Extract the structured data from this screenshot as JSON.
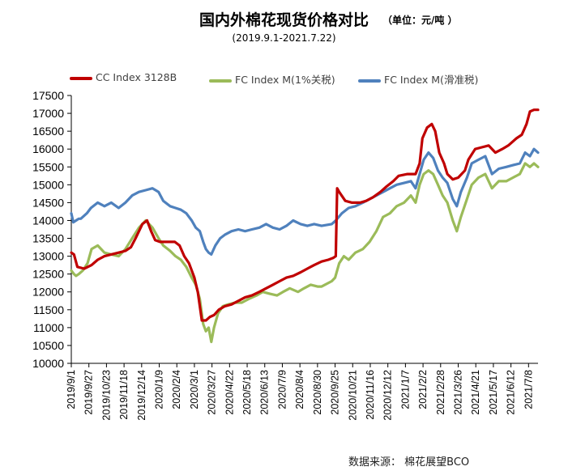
{
  "colors": {
    "cc": "#C00000",
    "fc1": "#9BBB59",
    "fc2": "#4F81BD"
  },
  "title": "国内外棉花现货价格对比",
  "unit": "（单位：元/吨 ）",
  "subtitle": "(2019.9.1-2021.7.22)",
  "source": "数据来源：  棉花展望BCO",
  "chart_data": {
    "type": "line",
    "title": "国内外棉花现货价格对比",
    "subtitle": "(2019.9.1-2021.7.22)",
    "ylabel": "",
    "xlabel": "",
    "ylim": [
      10000,
      17500
    ],
    "yticks": [
      10000,
      10500,
      11000,
      11500,
      12000,
      12500,
      13000,
      13500,
      14000,
      14500,
      15000,
      15500,
      16000,
      16500,
      17000,
      17500
    ],
    "xlim": [
      "2019/9/1",
      "2021/7/22"
    ],
    "xticks": [
      "2019/9/1",
      "2019/9/27",
      "2019/10/23",
      "2019/11/18",
      "2019/12/14",
      "2020/1/9",
      "2020/2/4",
      "2020/3/1",
      "2020/3/27",
      "2020/4/22",
      "2020/5/18",
      "2020/6/13",
      "2020/7/9",
      "2020/8/4",
      "2020/8/30",
      "2020/9/25",
      "2020/10/21",
      "2020/11/16",
      "2020/12/12",
      "2021/1/7",
      "2021/2/2",
      "2021/2/28",
      "2021/3/26",
      "2021/4/21",
      "2021/5/17",
      "2021/6/12",
      "2021/7/8"
    ],
    "grid": false,
    "legend": "top",
    "series": [
      {
        "name": "CC Index 3128B",
        "points": [
          [
            "2019/9/1",
            13100
          ],
          [
            "2019/9/5",
            13050
          ],
          [
            "2019/9/10",
            12700
          ],
          [
            "2019/9/20",
            12650
          ],
          [
            "2019/10/1",
            12750
          ],
          [
            "2019/10/10",
            12900
          ],
          [
            "2019/10/20",
            13000
          ],
          [
            "2019/10/30",
            13050
          ],
          [
            "2019/11/10",
            13100
          ],
          [
            "2019/11/20",
            13150
          ],
          [
            "2019/11/28",
            13250
          ],
          [
            "2019/12/5",
            13500
          ],
          [
            "2019/12/15",
            13900
          ],
          [
            "2019/12/22",
            14000
          ],
          [
            "2019/12/28",
            13700
          ],
          [
            "2020/1/3",
            13450
          ],
          [
            "2020/1/10",
            13400
          ],
          [
            "2020/1/20",
            13400
          ],
          [
            "2020/2/1",
            13400
          ],
          [
            "2020/2/8",
            13300
          ],
          [
            "2020/2/15",
            13000
          ],
          [
            "2020/2/22",
            12800
          ],
          [
            "2020/3/1",
            12400
          ],
          [
            "2020/3/6",
            12000
          ],
          [
            "2020/3/12",
            11200
          ],
          [
            "2020/3/18",
            11200
          ],
          [
            "2020/3/24",
            11300
          ],
          [
            "2020/3/30",
            11350
          ],
          [
            "2020/4/6",
            11500
          ],
          [
            "2020/4/15",
            11600
          ],
          [
            "2020/4/25",
            11650
          ],
          [
            "2020/5/5",
            11750
          ],
          [
            "2020/5/15",
            11850
          ],
          [
            "2020/5/25",
            11900
          ],
          [
            "2020/6/5",
            12000
          ],
          [
            "2020/6/15",
            12100
          ],
          [
            "2020/6/25",
            12200
          ],
          [
            "2020/7/5",
            12300
          ],
          [
            "2020/7/15",
            12400
          ],
          [
            "2020/7/25",
            12450
          ],
          [
            "2020/8/5",
            12550
          ],
          [
            "2020/8/15",
            12650
          ],
          [
            "2020/8/25",
            12750
          ],
          [
            "2020/9/5",
            12850
          ],
          [
            "2020/9/15",
            12900
          ],
          [
            "2020/9/22",
            12950
          ],
          [
            "2020/9/26",
            13000
          ],
          [
            "2020/9/28",
            14900
          ],
          [
            "2020/10/1",
            14800
          ],
          [
            "2020/10/10",
            14550
          ],
          [
            "2020/10/20",
            14500
          ],
          [
            "2020/11/1",
            14500
          ],
          [
            "2020/11/10",
            14550
          ],
          [
            "2020/11/20",
            14650
          ],
          [
            "2020/12/1",
            14800
          ],
          [
            "2020/12/10",
            14950
          ],
          [
            "2020/12/20",
            15100
          ],
          [
            "2020/12/28",
            15250
          ],
          [
            "2021/1/10",
            15300
          ],
          [
            "2021/1/22",
            15300
          ],
          [
            "2021/1/28",
            15600
          ],
          [
            "2021/2/1",
            16300
          ],
          [
            "2021/2/8",
            16600
          ],
          [
            "2021/2/15",
            16700
          ],
          [
            "2021/2/20",
            16500
          ],
          [
            "2021/2/26",
            15900
          ],
          [
            "2021/3/5",
            15600
          ],
          [
            "2021/3/10",
            15300
          ],
          [
            "2021/3/18",
            15150
          ],
          [
            "2021/3/26",
            15200
          ],
          [
            "2021/4/5",
            15400
          ],
          [
            "2021/4/10",
            15700
          ],
          [
            "2021/4/20",
            16000
          ],
          [
            "2021/4/30",
            16050
          ],
          [
            "2021/5/10",
            16100
          ],
          [
            "2021/5/20",
            15900
          ],
          [
            "2021/5/30",
            16000
          ],
          [
            "2021/6/8",
            16100
          ],
          [
            "2021/6/14",
            16200
          ],
          [
            "2021/6/20",
            16300
          ],
          [
            "2021/6/28",
            16400
          ],
          [
            "2021/7/5",
            16700
          ],
          [
            "2021/7/10",
            17050
          ],
          [
            "2021/7/16",
            17100
          ],
          [
            "2021/7/22",
            17100
          ]
        ]
      },
      {
        "name": "FC Index M(1%关税)",
        "points": [
          [
            "2019/9/1",
            12600
          ],
          [
            "2019/9/5",
            12500
          ],
          [
            "2019/9/8",
            12450
          ],
          [
            "2019/9/12",
            12500
          ],
          [
            "2019/9/18",
            12600
          ],
          [
            "2019/9/25",
            12800
          ],
          [
            "2019/10/1",
            13200
          ],
          [
            "2019/10/10",
            13300
          ],
          [
            "2019/10/20",
            13100
          ],
          [
            "2019/10/30",
            13050
          ],
          [
            "2019/11/10",
            13000
          ],
          [
            "2019/11/20",
            13200
          ],
          [
            "2019/11/30",
            13500
          ],
          [
            "2019/12/10",
            13800
          ],
          [
            "2019/12/20",
            14000
          ],
          [
            "2019/12/30",
            13800
          ],
          [
            "2020/1/8",
            13500
          ],
          [
            "2020/1/15",
            13300
          ],
          [
            "2020/1/25",
            13150
          ],
          [
            "2020/2/2",
            13000
          ],
          [
            "2020/2/10",
            12900
          ],
          [
            "2020/2/18",
            12700
          ],
          [
            "2020/2/26",
            12400
          ],
          [
            "2020/3/3",
            12200
          ],
          [
            "2020/3/9",
            11800
          ],
          [
            "2020/3/14",
            11100
          ],
          [
            "2020/3/18",
            10900
          ],
          [
            "2020/3/22",
            11000
          ],
          [
            "2020/3/26",
            10600
          ],
          [
            "2020/3/30",
            11000
          ],
          [
            "2020/4/5",
            11400
          ],
          [
            "2020/4/12",
            11600
          ],
          [
            "2020/4/20",
            11650
          ],
          [
            "2020/4/30",
            11700
          ],
          [
            "2020/5/10",
            11700
          ],
          [
            "2020/5/20",
            11800
          ],
          [
            "2020/6/1",
            11900
          ],
          [
            "2020/6/10",
            12000
          ],
          [
            "2020/6/20",
            11950
          ],
          [
            "2020/7/1",
            11900
          ],
          [
            "2020/7/10",
            12000
          ],
          [
            "2020/7/20",
            12100
          ],
          [
            "2020/8/1",
            12000
          ],
          [
            "2020/8/10",
            12100
          ],
          [
            "2020/8/20",
            12200
          ],
          [
            "2020/8/30",
            12150
          ],
          [
            "2020/9/5",
            12150
          ],
          [
            "2020/9/20",
            12300
          ],
          [
            "2020/9/25",
            12400
          ],
          [
            "2020/10/1",
            12800
          ],
          [
            "2020/10/8",
            13000
          ],
          [
            "2020/10/15",
            12900
          ],
          [
            "2020/10/25",
            13100
          ],
          [
            "2020/11/5",
            13200
          ],
          [
            "2020/11/15",
            13400
          ],
          [
            "2020/11/25",
            13700
          ],
          [
            "2020/12/5",
            14100
          ],
          [
            "2020/12/15",
            14200
          ],
          [
            "2020/12/25",
            14400
          ],
          [
            "2021/1/5",
            14500
          ],
          [
            "2021/1/15",
            14700
          ],
          [
            "2021/1/22",
            14500
          ],
          [
            "2021/1/28",
            15000
          ],
          [
            "2021/2/3",
            15300
          ],
          [
            "2021/2/10",
            15400
          ],
          [
            "2021/2/17",
            15300
          ],
          [
            "2021/2/24",
            15000
          ],
          [
            "2021/3/3",
            14700
          ],
          [
            "2021/3/10",
            14500
          ],
          [
            "2021/3/18",
            14000
          ],
          [
            "2021/3/24",
            13700
          ],
          [
            "2021/3/30",
            14100
          ],
          [
            "2021/4/8",
            14600
          ],
          [
            "2021/4/15",
            15000
          ],
          [
            "2021/4/25",
            15200
          ],
          [
            "2021/5/5",
            15300
          ],
          [
            "2021/5/15",
            14900
          ],
          [
            "2021/5/25",
            15100
          ],
          [
            "2021/6/5",
            15100
          ],
          [
            "2021/6/15",
            15200
          ],
          [
            "2021/6/25",
            15300
          ],
          [
            "2021/7/3",
            15600
          ],
          [
            "2021/7/10",
            15500
          ],
          [
            "2021/7/16",
            15600
          ],
          [
            "2021/7/22",
            15500
          ]
        ]
      },
      {
        "name": "FC Index M(滑准税)",
        "points": [
          [
            "2019/9/1",
            14200
          ],
          [
            "2019/9/4",
            13950
          ],
          [
            "2019/9/8",
            14000
          ],
          [
            "2019/9/12",
            14050
          ],
          [
            "2019/9/15",
            14050
          ],
          [
            "2019/9/24",
            14200
          ],
          [
            "2019/9/30",
            14350
          ],
          [
            "2019/10/10",
            14500
          ],
          [
            "2019/10/20",
            14400
          ],
          [
            "2019/10/30",
            14500
          ],
          [
            "2019/11/10",
            14350
          ],
          [
            "2019/11/20",
            14500
          ],
          [
            "2019/11/30",
            14700
          ],
          [
            "2019/12/10",
            14800
          ],
          [
            "2019/12/20",
            14850
          ],
          [
            "2019/12/30",
            14900
          ],
          [
            "2020/1/8",
            14800
          ],
          [
            "2020/1/15",
            14550
          ],
          [
            "2020/1/25",
            14400
          ],
          [
            "2020/2/2",
            14350
          ],
          [
            "2020/2/10",
            14300
          ],
          [
            "2020/2/18",
            14200
          ],
          [
            "2020/2/26",
            14000
          ],
          [
            "2020/3/3",
            13800
          ],
          [
            "2020/3/9",
            13700
          ],
          [
            "2020/3/14",
            13400
          ],
          [
            "2020/3/18",
            13200
          ],
          [
            "2020/3/22",
            13100
          ],
          [
            "2020/3/26",
            13050
          ],
          [
            "2020/4/1",
            13300
          ],
          [
            "2020/4/8",
            13500
          ],
          [
            "2020/4/15",
            13600
          ],
          [
            "2020/4/25",
            13700
          ],
          [
            "2020/5/5",
            13750
          ],
          [
            "2020/5/15",
            13700
          ],
          [
            "2020/5/25",
            13750
          ],
          [
            "2020/6/5",
            13800
          ],
          [
            "2020/6/15",
            13900
          ],
          [
            "2020/6/25",
            13800
          ],
          [
            "2020/7/5",
            13750
          ],
          [
            "2020/7/15",
            13850
          ],
          [
            "2020/7/25",
            14000
          ],
          [
            "2020/8/5",
            13900
          ],
          [
            "2020/8/15",
            13850
          ],
          [
            "2020/8/25",
            13900
          ],
          [
            "2020/9/5",
            13850
          ],
          [
            "2020/9/20",
            13900
          ],
          [
            "2020/9/26",
            14000
          ],
          [
            "2020/10/5",
            14200
          ],
          [
            "2020/10/15",
            14350
          ],
          [
            "2020/10/25",
            14400
          ],
          [
            "2020/11/5",
            14500
          ],
          [
            "2020/11/15",
            14600
          ],
          [
            "2020/11/25",
            14700
          ],
          [
            "2020/12/5",
            14800
          ],
          [
            "2020/12/15",
            14900
          ],
          [
            "2020/12/25",
            15000
          ],
          [
            "2021/1/5",
            15050
          ],
          [
            "2021/1/15",
            15100
          ],
          [
            "2021/1/22",
            14900
          ],
          [
            "2021/1/28",
            15300
          ],
          [
            "2021/2/3",
            15700
          ],
          [
            "2021/2/10",
            15900
          ],
          [
            "2021/2/17",
            15750
          ],
          [
            "2021/2/24",
            15400
          ],
          [
            "2021/3/3",
            15200
          ],
          [
            "2021/3/10",
            15050
          ],
          [
            "2021/3/18",
            14600
          ],
          [
            "2021/3/24",
            14400
          ],
          [
            "2021/3/30",
            14800
          ],
          [
            "2021/4/8",
            15200
          ],
          [
            "2021/4/15",
            15600
          ],
          [
            "2021/4/25",
            15700
          ],
          [
            "2021/5/5",
            15800
          ],
          [
            "2021/5/15",
            15300
          ],
          [
            "2021/5/25",
            15450
          ],
          [
            "2021/6/5",
            15500
          ],
          [
            "2021/6/15",
            15550
          ],
          [
            "2021/6/25",
            15600
          ],
          [
            "2021/7/3",
            15900
          ],
          [
            "2021/7/10",
            15800
          ],
          [
            "2021/7/16",
            16000
          ],
          [
            "2021/7/22",
            15900
          ]
        ]
      }
    ]
  }
}
